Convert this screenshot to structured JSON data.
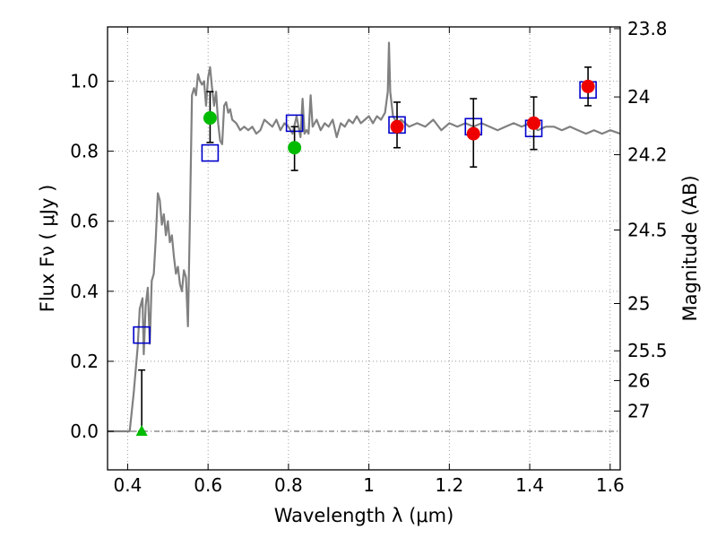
{
  "chart_data": {
    "type": "scatter",
    "xlabel": "Wavelength  λ (μm)",
    "ylabel": "Flux  Fν  ( μJy )",
    "ylabel_right": "Magnitude (AB)",
    "xlim": [
      0.35,
      1.625
    ],
    "ylim": [
      -0.11,
      1.155
    ],
    "grid": true,
    "x_ticks": [
      0.4,
      0.6,
      0.8,
      1.0,
      1.2,
      1.4,
      1.6
    ],
    "x_tick_labels": [
      "0.4",
      "0.6",
      "0.8",
      "1",
      "1.2",
      "1.4",
      "1.6"
    ],
    "y_ticks": [
      0.0,
      0.2,
      0.4,
      0.6,
      0.8,
      1.0
    ],
    "y_tick_labels": [
      "0.0",
      "0.2",
      "0.4",
      "0.6",
      "0.8",
      "1.0"
    ],
    "right_ticks": [
      {
        "flux": 1.15,
        "label": "23.8"
      },
      {
        "flux": 0.955,
        "label": "24"
      },
      {
        "flux": 0.79,
        "label": "24.2"
      },
      {
        "flux": 0.575,
        "label": "24.5"
      },
      {
        "flux": 0.365,
        "label": "25"
      },
      {
        "flux": 0.23,
        "label": "25.5"
      },
      {
        "flux": 0.145,
        "label": "26"
      },
      {
        "flux": 0.058,
        "label": "27"
      }
    ],
    "colors": {
      "model": "#808080",
      "square": "#0000cc",
      "green": "#00bb00",
      "red": "#ee0000",
      "errorbar": "#000000",
      "grid": "#888888"
    },
    "series": [
      {
        "kind": "line",
        "points": [
          [
            0.35,
            0.0
          ],
          [
            0.405,
            0.0
          ],
          [
            0.415,
            0.11
          ],
          [
            0.425,
            0.24
          ],
          [
            0.43,
            0.35
          ],
          [
            0.437,
            0.38
          ],
          [
            0.44,
            0.22
          ],
          [
            0.445,
            0.36
          ],
          [
            0.45,
            0.41
          ],
          [
            0.455,
            0.25
          ],
          [
            0.46,
            0.43
          ],
          [
            0.465,
            0.45
          ],
          [
            0.47,
            0.55
          ],
          [
            0.475,
            0.68
          ],
          [
            0.48,
            0.66
          ],
          [
            0.485,
            0.59
          ],
          [
            0.49,
            0.62
          ],
          [
            0.495,
            0.56
          ],
          [
            0.5,
            0.6
          ],
          [
            0.505,
            0.54
          ],
          [
            0.51,
            0.56
          ],
          [
            0.515,
            0.5
          ],
          [
            0.52,
            0.45
          ],
          [
            0.525,
            0.47
          ],
          [
            0.53,
            0.42
          ],
          [
            0.535,
            0.4
          ],
          [
            0.54,
            0.46
          ],
          [
            0.545,
            0.44
          ],
          [
            0.55,
            0.3
          ],
          [
            0.555,
            0.62
          ],
          [
            0.56,
            0.96
          ],
          [
            0.565,
            0.98
          ],
          [
            0.57,
            0.96
          ],
          [
            0.575,
            1.02
          ],
          [
            0.58,
            1.0
          ],
          [
            0.585,
            0.99
          ],
          [
            0.59,
            1.0
          ],
          [
            0.595,
            0.93
          ],
          [
            0.6,
            1.01
          ],
          [
            0.605,
            1.04
          ],
          [
            0.61,
            0.98
          ],
          [
            0.615,
            0.93
          ],
          [
            0.62,
            0.97
          ],
          [
            0.625,
            0.88
          ],
          [
            0.63,
            0.83
          ],
          [
            0.635,
            0.82
          ],
          [
            0.64,
            0.93
          ],
          [
            0.645,
            0.94
          ],
          [
            0.65,
            0.91
          ],
          [
            0.655,
            0.92
          ],
          [
            0.66,
            0.89
          ],
          [
            0.67,
            0.88
          ],
          [
            0.68,
            0.86
          ],
          [
            0.69,
            0.87
          ],
          [
            0.7,
            0.86
          ],
          [
            0.71,
            0.87
          ],
          [
            0.72,
            0.85
          ],
          [
            0.73,
            0.86
          ],
          [
            0.74,
            0.89
          ],
          [
            0.75,
            0.88
          ],
          [
            0.76,
            0.87
          ],
          [
            0.77,
            0.89
          ],
          [
            0.78,
            0.86
          ],
          [
            0.79,
            0.88
          ],
          [
            0.8,
            0.87
          ],
          [
            0.81,
            0.85
          ],
          [
            0.82,
            0.9
          ],
          [
            0.83,
            0.84
          ],
          [
            0.835,
            0.95
          ],
          [
            0.84,
            0.85
          ],
          [
            0.845,
            0.86
          ],
          [
            0.85,
            0.85
          ],
          [
            0.855,
            0.96
          ],
          [
            0.86,
            0.87
          ],
          [
            0.87,
            0.89
          ],
          [
            0.88,
            0.86
          ],
          [
            0.89,
            0.88
          ],
          [
            0.9,
            0.87
          ],
          [
            0.91,
            0.89
          ],
          [
            0.92,
            0.84
          ],
          [
            0.93,
            0.88
          ],
          [
            0.94,
            0.87
          ],
          [
            0.95,
            0.89
          ],
          [
            0.96,
            0.88
          ],
          [
            0.97,
            0.9
          ],
          [
            0.98,
            0.88
          ],
          [
            0.99,
            0.89
          ],
          [
            1.0,
            0.9
          ],
          [
            1.01,
            0.88
          ],
          [
            1.02,
            0.9
          ],
          [
            1.03,
            0.89
          ],
          [
            1.04,
            0.91
          ],
          [
            1.047,
            0.97
          ],
          [
            1.05,
            1.11
          ],
          [
            1.053,
            0.97
          ],
          [
            1.06,
            0.9
          ],
          [
            1.07,
            0.88
          ],
          [
            1.08,
            0.89
          ],
          [
            1.1,
            0.87
          ],
          [
            1.12,
            0.88
          ],
          [
            1.14,
            0.87
          ],
          [
            1.16,
            0.89
          ],
          [
            1.18,
            0.86
          ],
          [
            1.2,
            0.88
          ],
          [
            1.22,
            0.87
          ],
          [
            1.24,
            0.88
          ],
          [
            1.26,
            0.87
          ],
          [
            1.28,
            0.88
          ],
          [
            1.3,
            0.87
          ],
          [
            1.32,
            0.86
          ],
          [
            1.34,
            0.87
          ],
          [
            1.36,
            0.88
          ],
          [
            1.38,
            0.87
          ],
          [
            1.4,
            0.88
          ],
          [
            1.42,
            0.86
          ],
          [
            1.44,
            0.87
          ],
          [
            1.46,
            0.87
          ],
          [
            1.48,
            0.86
          ],
          [
            1.5,
            0.87
          ],
          [
            1.52,
            0.86
          ],
          [
            1.54,
            0.85
          ],
          [
            1.56,
            0.86
          ],
          [
            1.58,
            0.85
          ],
          [
            1.6,
            0.86
          ],
          [
            1.625,
            0.85
          ]
        ]
      },
      {
        "kind": "square",
        "points": [
          [
            0.435,
            0.275
          ],
          [
            0.605,
            0.795
          ],
          [
            0.815,
            0.88
          ],
          [
            1.07,
            0.875
          ],
          [
            1.26,
            0.87
          ],
          [
            1.41,
            0.865
          ],
          [
            1.545,
            0.975
          ]
        ]
      },
      {
        "kind": "errorbar",
        "points": [
          [
            0.435,
            0.0,
            0.175
          ],
          [
            0.605,
            0.825,
            0.97
          ],
          [
            0.815,
            0.745,
            0.87
          ],
          [
            1.07,
            0.81,
            0.94
          ],
          [
            1.26,
            0.755,
            0.95
          ],
          [
            1.41,
            0.805,
            0.955
          ],
          [
            1.545,
            0.93,
            1.04
          ]
        ]
      },
      {
        "kind": "circle-green",
        "points": [
          [
            0.605,
            0.895
          ],
          [
            0.815,
            0.81
          ]
        ]
      },
      {
        "kind": "triangle-green",
        "points": [
          [
            0.435,
            0.0
          ]
        ]
      },
      {
        "kind": "circle-red",
        "points": [
          [
            1.07,
            0.87
          ],
          [
            1.26,
            0.85
          ],
          [
            1.41,
            0.88
          ],
          [
            1.545,
            0.985
          ]
        ]
      }
    ]
  }
}
